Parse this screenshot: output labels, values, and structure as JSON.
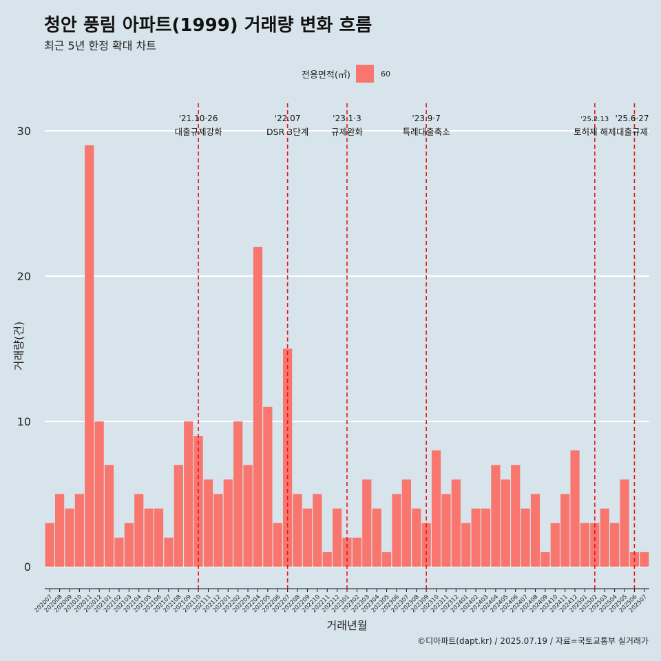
{
  "title": "청안 풍림 아파트(1999) 거래량 변화 흐름",
  "subtitle": "최근 5년 한정 확대 차트",
  "legend": {
    "title": "전용면적(㎡)",
    "entries": [
      {
        "label": "60",
        "color": "#f8766d"
      }
    ]
  },
  "caption": "©디아파트(dapt.kr) / 2025.07.19 / 자료=국토교통부 실거래가",
  "chart_data": {
    "type": "bar",
    "xlabel": "거래년월",
    "ylabel": "거래량(건)",
    "ylim": [
      0,
      30
    ],
    "yticks": [
      0,
      10,
      20,
      30
    ],
    "grid": true,
    "legend_position": "top",
    "colors": {
      "bar": "#f8766d",
      "background": "#d7e4eb",
      "grid": "#ffffff",
      "event_line": "#e8161b"
    },
    "categories": [
      "202007",
      "202008",
      "202009",
      "202010",
      "202011",
      "202012",
      "202101",
      "202102",
      "202103",
      "202104",
      "202105",
      "202106",
      "202107",
      "202108",
      "202109",
      "202110",
      "202111",
      "202112",
      "202201",
      "202202",
      "202203",
      "202204",
      "202205",
      "202206",
      "202207",
      "202208",
      "202209",
      "202210",
      "202211",
      "202212",
      "202301",
      "202302",
      "202303",
      "202304",
      "202305",
      "202306",
      "202307",
      "202308",
      "202309",
      "202310",
      "202311",
      "202312",
      "202401",
      "202402",
      "202403",
      "202404",
      "202405",
      "202406",
      "202407",
      "202408",
      "202409",
      "202410",
      "202411",
      "202412",
      "202501",
      "202502",
      "202503",
      "202504",
      "202505",
      "202506",
      "202507"
    ],
    "series": [
      {
        "name": "60",
        "values": [
          3,
          5,
          4,
          5,
          29,
          10,
          7,
          2,
          3,
          5,
          4,
          4,
          2,
          7,
          10,
          9,
          6,
          5,
          6,
          10,
          7,
          22,
          11,
          3,
          15,
          5,
          4,
          5,
          1,
          4,
          2,
          2,
          6,
          4,
          1,
          5,
          6,
          4,
          3,
          8,
          5,
          6,
          3,
          4,
          4,
          7,
          6,
          7,
          4,
          5,
          1,
          3,
          5,
          8,
          3,
          3,
          4,
          3,
          6,
          1,
          1
        ]
      }
    ],
    "annotations": [
      {
        "x": "202110",
        "date": "'21.10·26",
        "text": "대출규제강화"
      },
      {
        "x": "202207",
        "date": "'22.07",
        "text": "DSR 3단계"
      },
      {
        "x": "202301",
        "date": "'23.1·3",
        "text": "규제완화"
      },
      {
        "x": "202309",
        "date": "'23.9·7",
        "text": "특례대출축소"
      },
      {
        "x": "202502",
        "date": "'25.2.13",
        "text": "토허제 해제"
      },
      {
        "x": "202506",
        "date": "'25.6·27",
        "text": "대출규제"
      }
    ]
  }
}
